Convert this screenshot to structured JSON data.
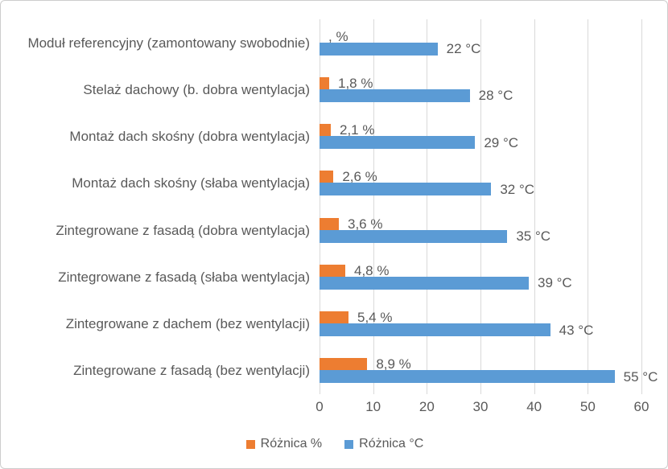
{
  "chart_data": {
    "type": "bar",
    "orientation": "horizontal",
    "title": "",
    "categories": [
      "Moduł referencyjny (zamontowany swobodnie)",
      "Stelaż dachowy (b. dobra wentylacja)",
      "Montaż dach skośny (dobra wentylacja)",
      "Montaż dach skośny (słaba wentylacja)",
      "Zintegrowane z fasadą (dobra wentylacja)",
      "Zintegrowane z fasadą (słaba wentylacja)",
      "Zintegrowane z dachem (bez wentylacji)",
      "Zintegrowane z fasadą (bez wentylacji)"
    ],
    "series": [
      {
        "name": "Różnica %",
        "color": "#ED7D31",
        "values": [
          0,
          1.8,
          2.1,
          2.6,
          3.6,
          4.8,
          5.4,
          8.9
        ],
        "data_labels": [
          ", %",
          "1,8 %",
          "2,1 %",
          "2,6 %",
          "3,6 %",
          "4,8 %",
          "5,4 %",
          "8,9 %"
        ]
      },
      {
        "name": "Różnica °C",
        "color": "#5B9BD5",
        "values": [
          22,
          28,
          29,
          32,
          35,
          39,
          43,
          55
        ],
        "data_labels": [
          "22 °C",
          "28 °C",
          "29 °C",
          "32 °C",
          "35 °C",
          "39 °C",
          "43 °C",
          "55 °C"
        ]
      }
    ],
    "xlim": [
      0,
      60
    ],
    "x_ticks": [
      "0",
      "10",
      "20",
      "30",
      "40",
      "50",
      "60"
    ],
    "grid": true,
    "legend_position": "bottom",
    "colors": {
      "gridline": "#D9D9D9",
      "text": "#595959",
      "background": "#FFFFFF",
      "border": "#CDCDCD"
    }
  }
}
